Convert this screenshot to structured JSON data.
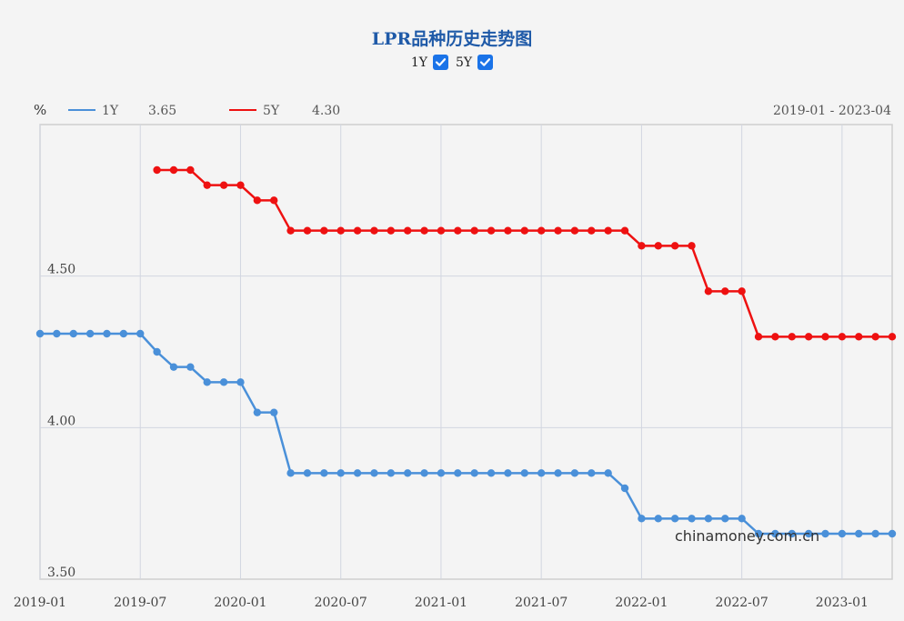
{
  "header": {
    "title": "LPR品种历史走势图",
    "toggles": [
      {
        "label": "1Y",
        "checked": true
      },
      {
        "label": "5Y",
        "checked": true
      }
    ]
  },
  "legend": {
    "unit": "%",
    "series": [
      {
        "name": "1Y",
        "latest": "3.65",
        "color": "#4a90d9"
      },
      {
        "name": "5Y",
        "latest": "4.30",
        "color": "#ee1111"
      }
    ],
    "range_text": "2019-01 - 2023-04"
  },
  "watermark": "chinamoney.com.cn",
  "chart_data": {
    "type": "line",
    "title": "LPR品种历史走势图",
    "ylabel": "%",
    "ylim": [
      3.5,
      5.0
    ],
    "yticks": [
      "4.50",
      "4.00",
      "3.50"
    ],
    "ytick_values": [
      4.5,
      4.0,
      3.5
    ],
    "xticks": [
      "2019-01",
      "2019-07",
      "2020-01",
      "2020-07",
      "2021-01",
      "2021-07",
      "2022-01",
      "2022-07",
      "2023-01"
    ],
    "x": [
      "2019-01",
      "2019-02",
      "2019-03",
      "2019-04",
      "2019-05",
      "2019-06",
      "2019-07",
      "2019-08",
      "2019-09",
      "2019-10",
      "2019-11",
      "2019-12",
      "2020-01",
      "2020-02",
      "2020-03",
      "2020-04",
      "2020-05",
      "2020-06",
      "2020-07",
      "2020-08",
      "2020-09",
      "2020-10",
      "2020-11",
      "2020-12",
      "2021-01",
      "2021-02",
      "2021-03",
      "2021-04",
      "2021-05",
      "2021-06",
      "2021-07",
      "2021-08",
      "2021-09",
      "2021-10",
      "2021-11",
      "2021-12",
      "2022-01",
      "2022-02",
      "2022-03",
      "2022-04",
      "2022-05",
      "2022-06",
      "2022-07",
      "2022-08",
      "2022-09",
      "2022-10",
      "2022-11",
      "2022-12",
      "2023-01",
      "2023-02",
      "2023-03",
      "2023-04"
    ],
    "grid": true,
    "series": [
      {
        "name": "1Y",
        "color": "#4a90d9",
        "values": [
          4.31,
          4.31,
          4.31,
          4.31,
          4.31,
          4.31,
          4.31,
          4.25,
          4.2,
          4.2,
          4.15,
          4.15,
          4.15,
          4.05,
          4.05,
          3.85,
          3.85,
          3.85,
          3.85,
          3.85,
          3.85,
          3.85,
          3.85,
          3.85,
          3.85,
          3.85,
          3.85,
          3.85,
          3.85,
          3.85,
          3.85,
          3.85,
          3.85,
          3.85,
          3.85,
          3.8,
          3.7,
          3.7,
          3.7,
          3.7,
          3.7,
          3.7,
          3.7,
          3.65,
          3.65,
          3.65,
          3.65,
          3.65,
          3.65,
          3.65,
          3.65,
          3.65
        ]
      },
      {
        "name": "5Y",
        "color": "#ee1111",
        "values": [
          null,
          null,
          null,
          null,
          null,
          null,
          null,
          4.85,
          4.85,
          4.85,
          4.8,
          4.8,
          4.8,
          4.75,
          4.75,
          4.65,
          4.65,
          4.65,
          4.65,
          4.65,
          4.65,
          4.65,
          4.65,
          4.65,
          4.65,
          4.65,
          4.65,
          4.65,
          4.65,
          4.65,
          4.65,
          4.65,
          4.65,
          4.65,
          4.65,
          4.65,
          4.6,
          4.6,
          4.6,
          4.6,
          4.45,
          4.45,
          4.45,
          4.3,
          4.3,
          4.3,
          4.3,
          4.3,
          4.3,
          4.3,
          4.3,
          4.3
        ]
      }
    ]
  }
}
